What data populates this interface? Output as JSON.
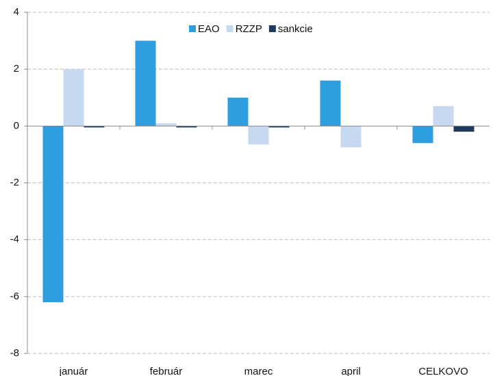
{
  "chart_data": {
    "type": "bar",
    "categories": [
      "január",
      "február",
      "marec",
      "april",
      "CELKOVO"
    ],
    "series": [
      {
        "name": "EAO",
        "color": "#2e9ee0",
        "values": [
          -6.2,
          3.0,
          1.0,
          1.6,
          -0.6
        ]
      },
      {
        "name": "RZZP",
        "color": "#c6d9f0",
        "values": [
          2.0,
          0.1,
          -0.65,
          -0.75,
          0.7
        ]
      },
      {
        "name": "sankcie",
        "color": "#1f3a5f",
        "values": [
          -0.05,
          -0.05,
          -0.05,
          0,
          -0.2
        ]
      }
    ],
    "ylim": [
      -8,
      4
    ],
    "yticks": [
      -8,
      -6,
      -4,
      -2,
      0,
      2,
      4
    ],
    "grid": true,
    "legend": "top"
  }
}
